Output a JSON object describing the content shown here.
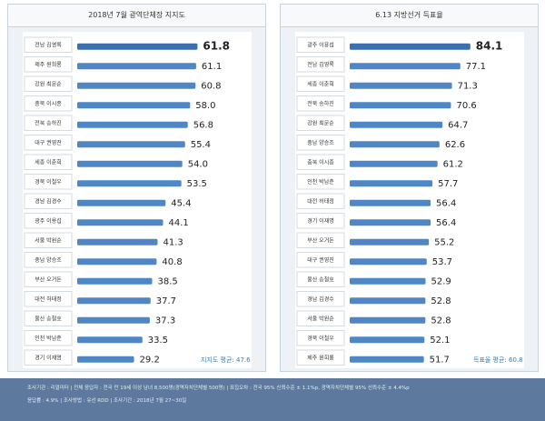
{
  "chart_data": [
    {
      "type": "bar",
      "orientation": "horizontal",
      "title": "2018년 7월 광역단체장 지지도",
      "categories": [
        "전남 김영록",
        "제주 원희룡",
        "강원 최문순",
        "충북 이시종",
        "전북 송하진",
        "대구 권영진",
        "세종 이춘희",
        "경북 이철우",
        "경남 김경수",
        "광주 이용섭",
        "서울 박원순",
        "충남 양승조",
        "부산 오거돈",
        "대전 허태정",
        "울산 송철호",
        "인천 박남춘",
        "경기 이재명"
      ],
      "values": [
        61.8,
        61.1,
        60.8,
        58.0,
        56.8,
        55.4,
        54.0,
        53.5,
        45.4,
        44.1,
        41.3,
        40.8,
        38.5,
        37.7,
        37.3,
        33.5,
        29.2
      ],
      "value_labels": [
        "61.8",
        "61.1",
        "60.8",
        "58.0",
        "56.8",
        "55.4",
        "54.0",
        "53.5",
        "45.4",
        "44.1",
        "41.3",
        "40.8",
        "38.5",
        "37.7",
        "37.3",
        "33.5",
        "29.2"
      ],
      "annotation": "지지도 평균: 47.6",
      "xlim": [
        0,
        70
      ],
      "grid": false
    },
    {
      "type": "bar",
      "orientation": "horizontal",
      "title": "6.13 지방선거 득표율",
      "categories": [
        "광주 이용섭",
        "전남 김영록",
        "세종 이춘희",
        "전북 송하진",
        "강원 최문순",
        "충남 양승조",
        "충북 이시종",
        "인천 박남춘",
        "대전 허태정",
        "경기 이재명",
        "부산 오거돈",
        "대구 권영진",
        "울산 송철호",
        "경남 김경수",
        "서울 박원순",
        "경북 이철우",
        "제주 원희룡"
      ],
      "values": [
        84.1,
        77.1,
        71.3,
        70.6,
        64.7,
        62.6,
        61.2,
        57.7,
        56.4,
        56.4,
        55.2,
        53.7,
        52.9,
        52.8,
        52.8,
        52.1,
        51.7
      ],
      "value_labels": [
        "84.1",
        "77.1",
        "71.3",
        "70.6",
        "64.7",
        "62.6",
        "61.2",
        "57.7",
        "56.4",
        "56.4",
        "55.2",
        "53.7",
        "52.9",
        "52.8",
        "52.8",
        "52.1",
        "51.7"
      ],
      "annotation": "득표율 평균: 60.8",
      "xlim": [
        0,
        95
      ],
      "grid": false
    }
  ],
  "footer": {
    "line1": "조사기관 : 리얼미터  |  전체 응답자 : 전국 만 19세 이상 남녀 8,500명(광역자치단체별 500명)  |  표집오차 : 전국 95% 신뢰수준 ± 1.1%p, 광역자치단체별 95% 신뢰수준 ± 4.4%p",
    "line2": "응답률 : 4.9%  |  조사방법 : 유선 RDD  |  조사기간 : 2018년 7월 27~30일"
  },
  "colors": {
    "bar": "#4f86c6",
    "bar_highlight": "#3a6fb0",
    "label_box": "#ffffff",
    "avg_text": "#2e7fc4",
    "footer_bg": "#5d7a9e"
  }
}
